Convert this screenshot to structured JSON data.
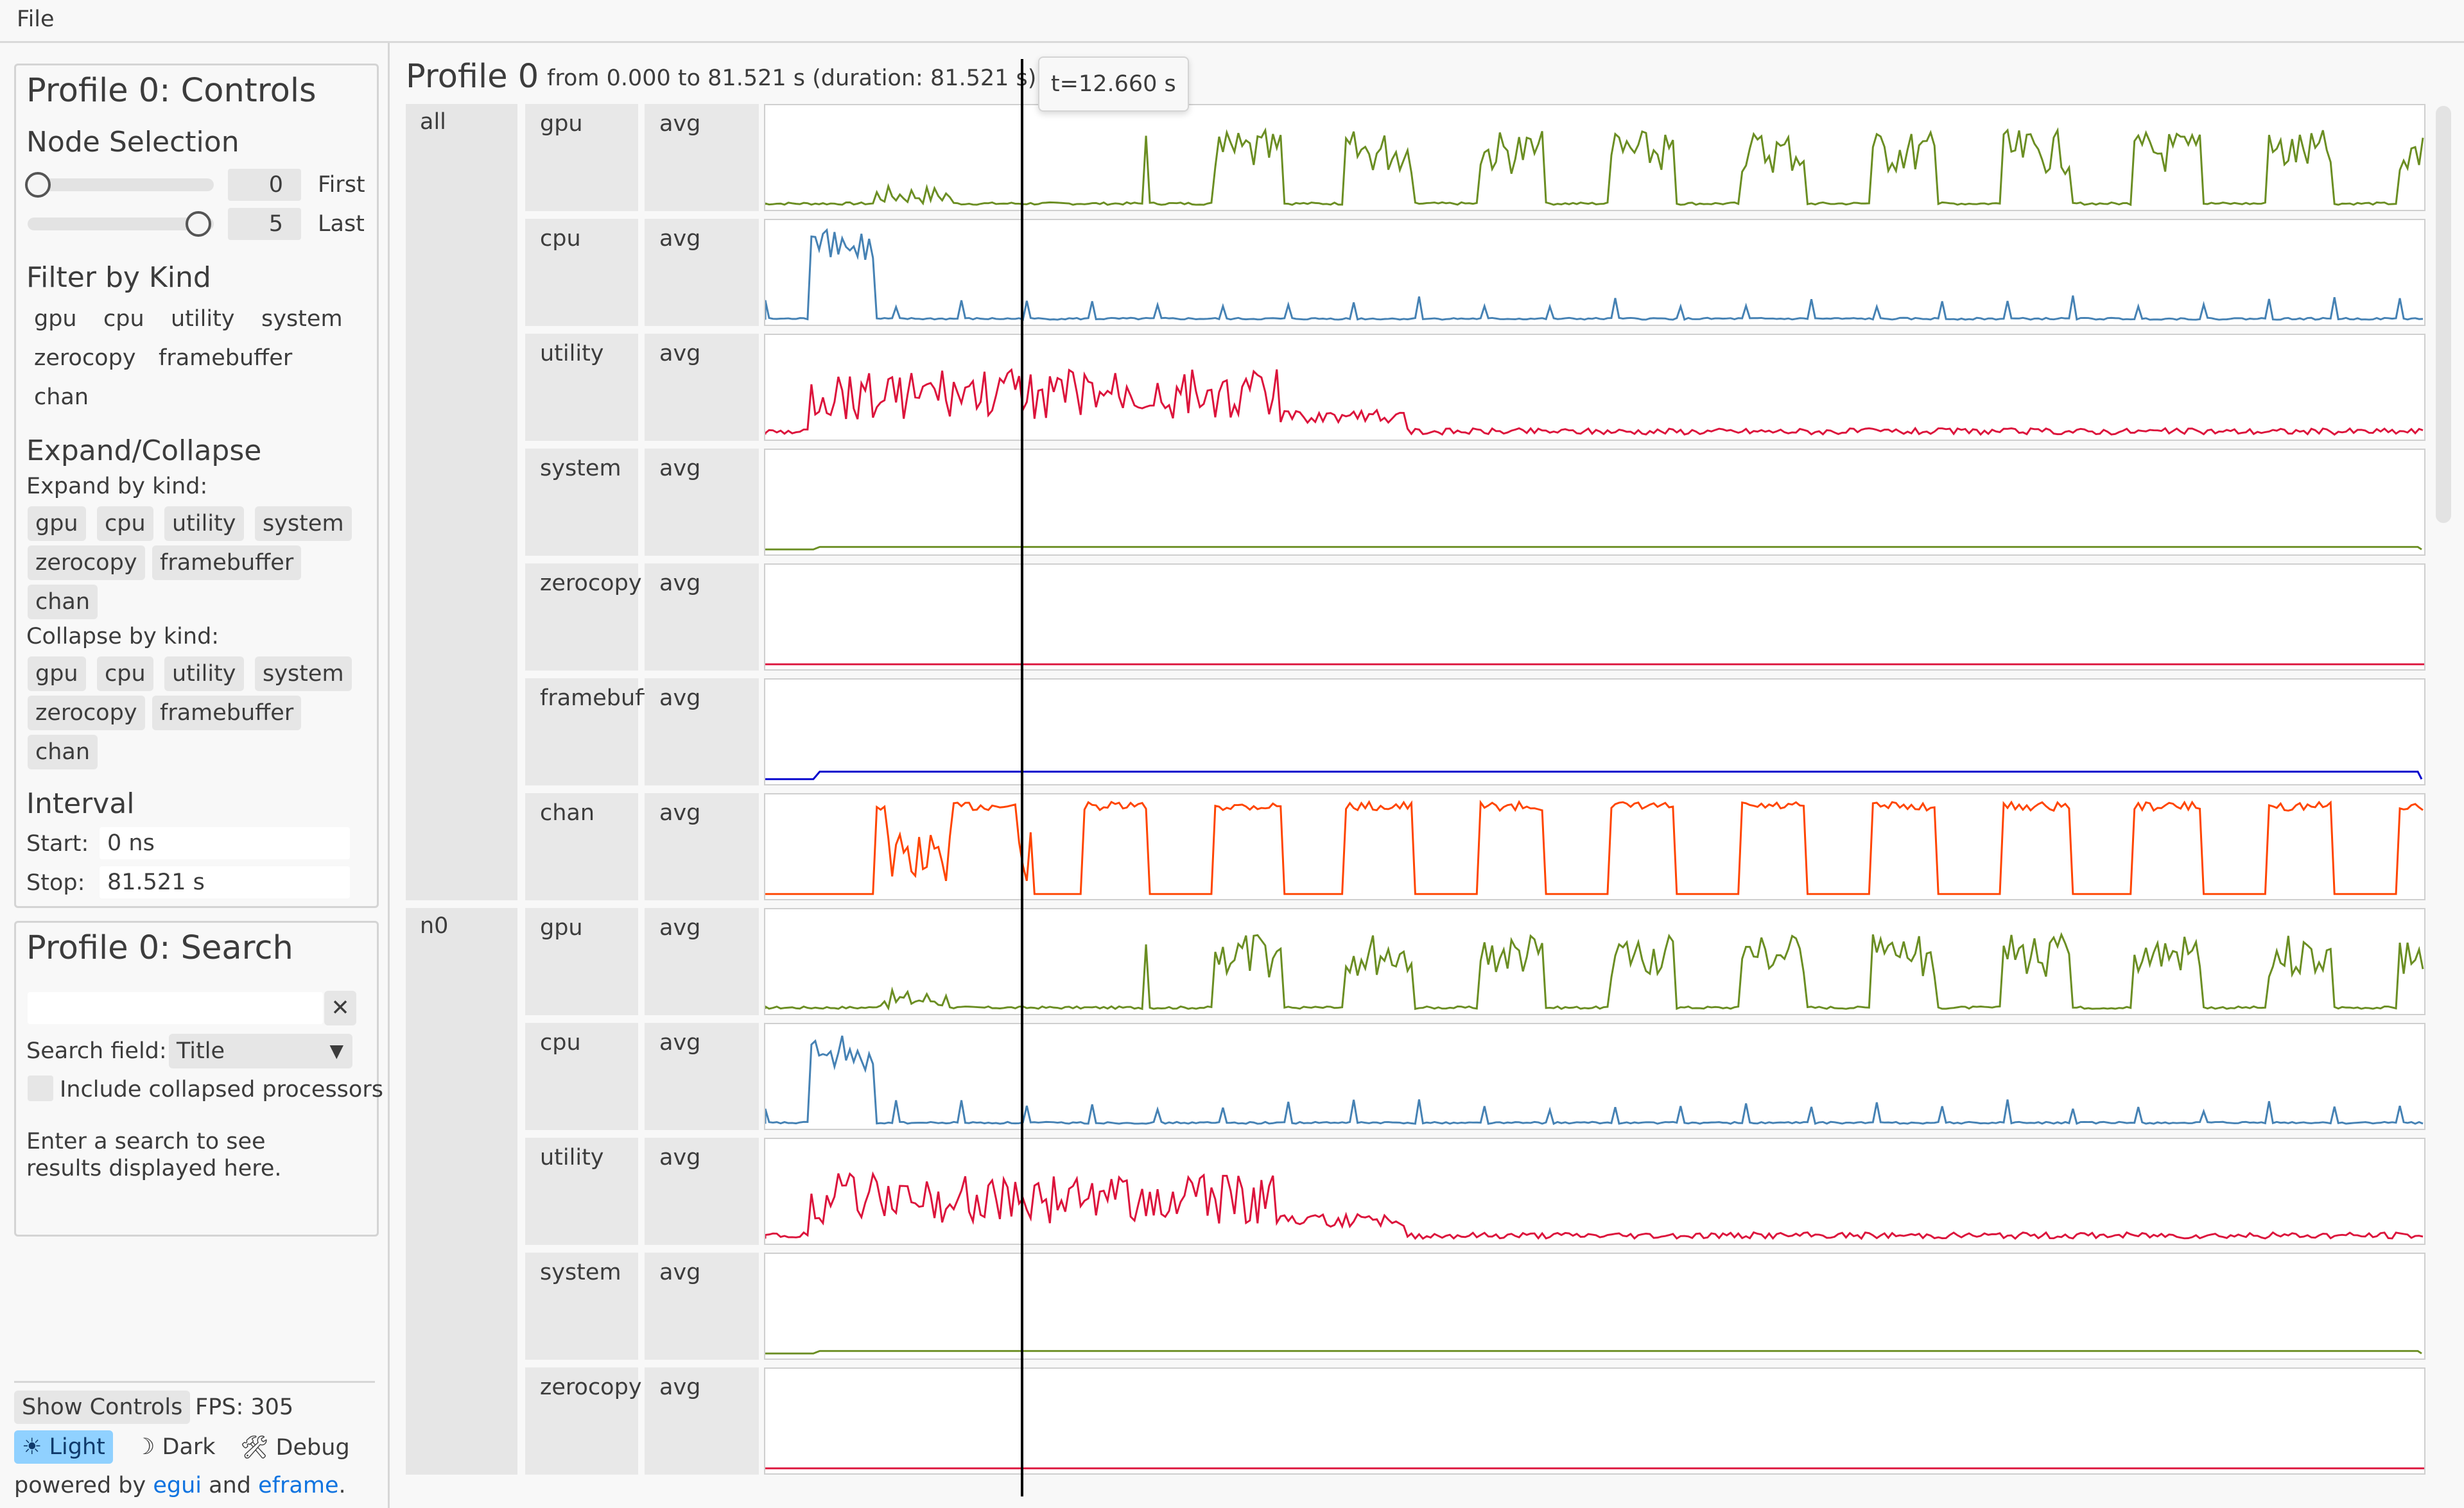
{
  "menu": {
    "file": "File"
  },
  "controls": {
    "title": "Profile 0: Controls",
    "node_selection": "Node Selection",
    "first_value": "0",
    "first_label": "First",
    "last_value": "5",
    "last_label": "Last",
    "filter_title": "Filter by Kind",
    "filter_kinds": [
      "gpu",
      "cpu",
      "utility",
      "system",
      "zerocopy",
      "framebuffer",
      "chan"
    ],
    "expand_title": "Expand/Collapse",
    "expand_by": "Expand by kind:",
    "collapse_by": "Collapse by kind:",
    "kinds": [
      "gpu",
      "cpu",
      "utility",
      "system",
      "zerocopy",
      "framebuffer",
      "chan"
    ],
    "interval_title": "Interval",
    "start_label": "Start:",
    "start_value": "0 ns",
    "stop_label": "Stop:",
    "stop_value": "81.521 s"
  },
  "search": {
    "title": "Profile 0: Search",
    "input_value": "",
    "clear_icon": "✕",
    "field_label": "Search field:",
    "field_value": "Title",
    "include_collapsed": "Include collapsed processors",
    "hint": "Enter a search to see results displayed here."
  },
  "footer": {
    "show_controls": "Show Controls",
    "fps": "FPS: 305",
    "light": "☀ Light",
    "dark": "☽ Dark",
    "debug": "🛠 Debug",
    "powered_by": "powered by",
    "egui": "egui",
    "and": "and",
    "eframe": "eframe",
    "period": "."
  },
  "timeline": {
    "title": "Profile 0",
    "range": "from 0.000 to 81.521 s (duration: 81.521 s)",
    "cursor_label": "t=12.660 s",
    "cursor_time_s": 12.66,
    "duration_s": 81.521,
    "nodes": [
      {
        "label": "all",
        "rows": [
          {
            "kind": "gpu",
            "stat": "avg",
            "color": "#6b8e23"
          },
          {
            "kind": "cpu",
            "stat": "avg",
            "color": "#4682b4"
          },
          {
            "kind": "utility",
            "stat": "avg",
            "color": "#dc143c"
          },
          {
            "kind": "system",
            "stat": "avg",
            "color": "#6b8e23"
          },
          {
            "kind": "zerocopy",
            "stat": "avg",
            "color": "#dc143c"
          },
          {
            "kind": "framebuffer",
            "stat": "avg",
            "color": "#0000cd"
          },
          {
            "kind": "chan",
            "stat": "avg",
            "color": "#ff4500"
          }
        ]
      },
      {
        "label": "n0",
        "rows": [
          {
            "kind": "gpu",
            "stat": "avg",
            "color": "#6b8e23"
          },
          {
            "kind": "cpu",
            "stat": "avg",
            "color": "#4682b4"
          },
          {
            "kind": "utility",
            "stat": "avg",
            "color": "#dc143c"
          },
          {
            "kind": "system",
            "stat": "avg",
            "color": "#6b8e23"
          },
          {
            "kind": "zerocopy",
            "stat": "avg",
            "color": "#dc143c"
          }
        ]
      }
    ]
  },
  "colors": {
    "accent": "#90d1ff",
    "link": "#0e73e0"
  }
}
